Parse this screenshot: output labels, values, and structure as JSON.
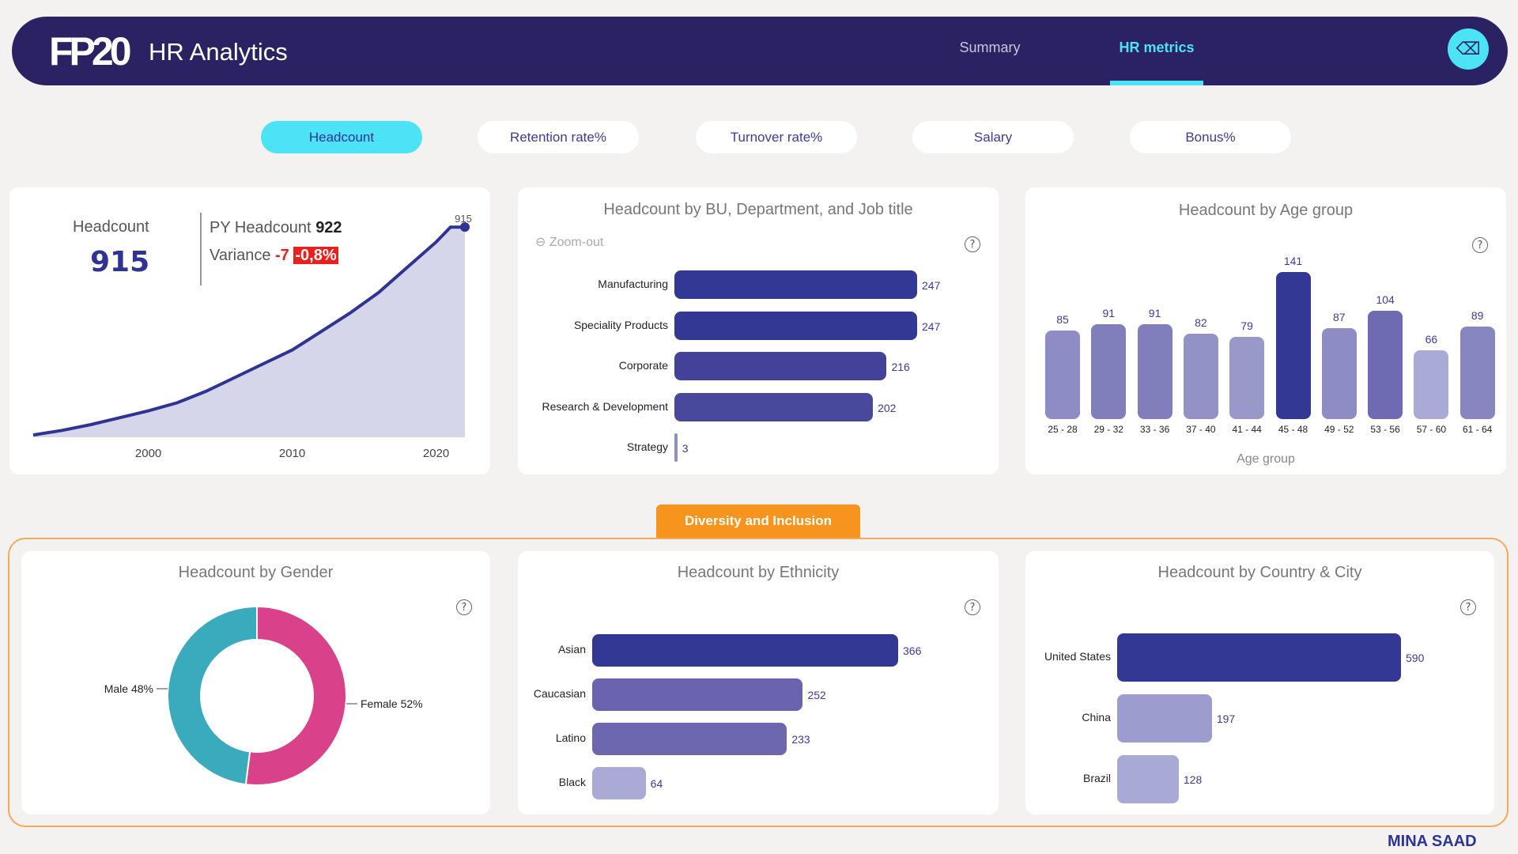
{
  "header": {
    "logo": "FP20",
    "title": "HR Analytics",
    "nav": [
      "Summary",
      "HR metrics"
    ],
    "active_nav": "HR metrics",
    "edit_icon": "eraser-icon"
  },
  "metric_tabs": [
    "Headcount",
    "Retention rate%",
    "Turnover rate%",
    "Salary",
    "Bonus%"
  ],
  "active_tab": "Headcount",
  "kpi": {
    "label": "Headcount",
    "value": "915",
    "py_label": "PY Headcount",
    "py_value": "922",
    "variance_label": "Variance",
    "variance_value": "-7",
    "variance_pct": "-0,8%",
    "end_label": "915"
  },
  "section_label": "Diversity and Inclusion",
  "brand": "MINA SAAD",
  "colors": {
    "navy": "#2a2262",
    "accent": "#4de3f7",
    "orange": "#f7941d",
    "bar_dark": "#333894",
    "female": "#d9428a",
    "male": "#3aabbd",
    "negative": "#e8211d"
  },
  "chart_data": [
    {
      "type": "area",
      "x": [
        1992,
        1994,
        1996,
        1998,
        2000,
        2002,
        2004,
        2006,
        2008,
        2010,
        2012,
        2014,
        2016,
        2018,
        2020,
        2021,
        2022
      ],
      "values": [
        10,
        30,
        55,
        85,
        115,
        150,
        200,
        260,
        320,
        380,
        460,
        540,
        630,
        740,
        850,
        915,
        915
      ],
      "xticks": [
        "2000",
        "2010",
        "2020"
      ],
      "xlim": [
        1992,
        2022
      ],
      "ylim": [
        0,
        950
      ]
    },
    {
      "type": "bar",
      "orientation": "horizontal",
      "title": "Headcount by BU, Department, and Job title",
      "zoom_label": "Zoom-out",
      "categories": [
        "Manufacturing",
        "Speciality Products",
        "Corporate",
        "Research & Development",
        "Strategy"
      ],
      "values": [
        247,
        247,
        216,
        202,
        3
      ],
      "colors": [
        "#333894",
        "#333894",
        "#43419a",
        "#4a489c",
        "#8f8fc8"
      ]
    },
    {
      "type": "bar",
      "title": "Headcount by Age group",
      "xlabel": "Age group",
      "categories": [
        "25 - 28",
        "29 - 32",
        "33 - 36",
        "37 - 40",
        "41 - 44",
        "45 - 48",
        "49 - 52",
        "53 - 56",
        "57 - 60",
        "61 - 64"
      ],
      "values": [
        85,
        91,
        91,
        82,
        79,
        141,
        87,
        104,
        66,
        89
      ],
      "colors": [
        "#8d8cc4",
        "#807fbb",
        "#807fbb",
        "#9292c6",
        "#9898c9",
        "#333894",
        "#8d8cc4",
        "#6e6bb2",
        "#aaaad6",
        "#8786c0"
      ]
    },
    {
      "type": "pie",
      "title": "Headcount by Gender",
      "categories": [
        "Female",
        "Male"
      ],
      "values": [
        52,
        48
      ],
      "labels": [
        "Female 52%",
        "Male 48%"
      ],
      "colors": [
        "#d9428a",
        "#3aabbd"
      ]
    },
    {
      "type": "bar",
      "orientation": "horizontal",
      "title": "Headcount by Ethnicity",
      "categories": [
        "Asian",
        "Caucasian",
        "Latino",
        "Black"
      ],
      "values": [
        366,
        252,
        233,
        64
      ],
      "colors": [
        "#333894",
        "#6a63b0",
        "#6d67b0",
        "#aaaad6"
      ]
    },
    {
      "type": "bar",
      "orientation": "horizontal",
      "title": "Headcount by Country & City",
      "categories": [
        "United States",
        "China",
        "Brazil"
      ],
      "values": [
        590,
        197,
        128
      ],
      "colors": [
        "#333894",
        "#9d9ccf",
        "#a9a9d6"
      ]
    }
  ]
}
